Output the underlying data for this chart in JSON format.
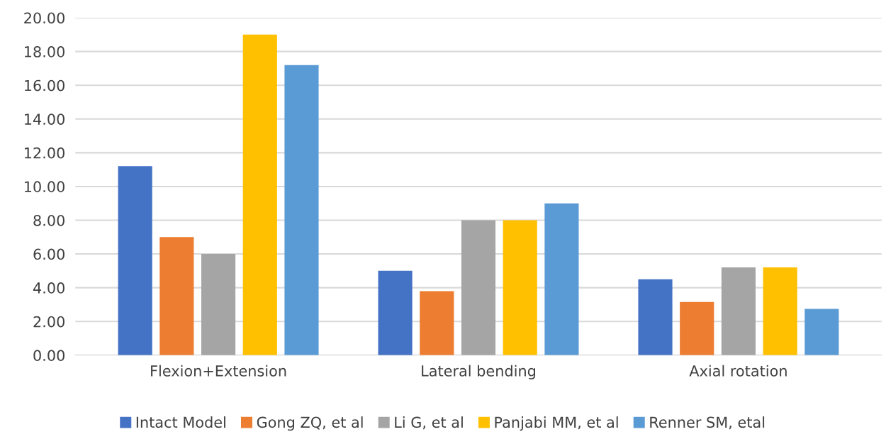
{
  "chart_data": {
    "type": "bar",
    "categories": [
      "Flexion+Extension",
      "Lateral bending",
      "Axial rotation"
    ],
    "series": [
      {
        "name": "Intact Model",
        "color": "#4472c4",
        "values": [
          11.2,
          5.0,
          4.5
        ]
      },
      {
        "name": "Gong ZQ, et al",
        "color": "#ed7d31",
        "values": [
          7.0,
          3.8,
          3.15
        ]
      },
      {
        "name": "Li G, et al",
        "color": "#a5a5a5",
        "values": [
          6.0,
          8.0,
          5.2
        ]
      },
      {
        "name": "Panjabi MM, et al",
        "color": "#ffc000",
        "values": [
          19.0,
          8.0,
          5.2
        ]
      },
      {
        "name": "Renner SM, etal",
        "color": "#5b9bd5",
        "values": [
          17.2,
          9.0,
          2.75
        ]
      }
    ],
    "ylim": [
      0,
      20
    ],
    "yticks": [
      {
        "value": 0,
        "label": "0.00"
      },
      {
        "value": 2,
        "label": "2.00"
      },
      {
        "value": 4,
        "label": "4.00"
      },
      {
        "value": 6,
        "label": "6.00"
      },
      {
        "value": 8,
        "label": "8.00"
      },
      {
        "value": 10,
        "label": "10.00"
      },
      {
        "value": 12,
        "label": "12.00"
      },
      {
        "value": 14,
        "label": "14.00"
      },
      {
        "value": 16,
        "label": "16.00"
      },
      {
        "value": 18,
        "label": "18.00"
      },
      {
        "value": 20,
        "label": "20.00"
      }
    ],
    "grid": "y",
    "legend": "bottom"
  }
}
